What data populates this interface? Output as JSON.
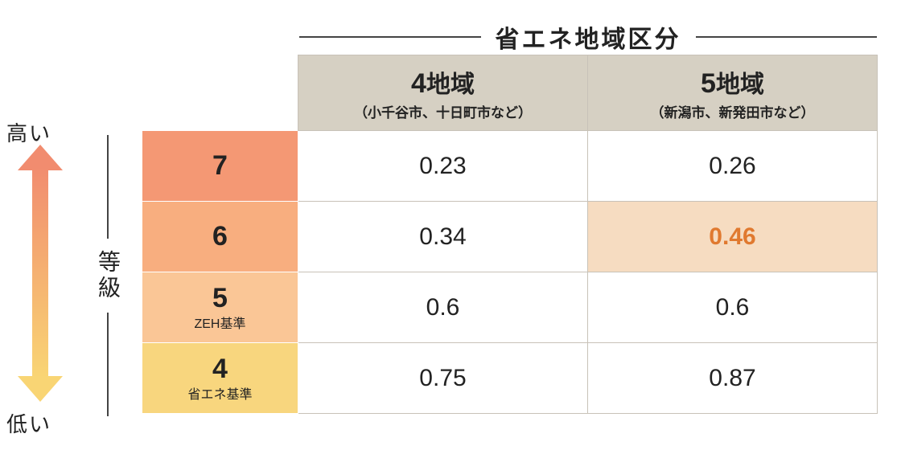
{
  "title": "省エネ地域区分",
  "axis": {
    "high_label": "高い",
    "low_label": "低い",
    "grade_label": "等級",
    "colors": {
      "top": "#f18c6f",
      "bottom": "#f9d574",
      "arrow_top": "#f18c6f",
      "arrow_bottom": "#f9d574"
    }
  },
  "columns": [
    {
      "num": "4",
      "suffix": "地域",
      "sub": "（小千谷市、十日町市など）"
    },
    {
      "num": "5",
      "suffix": "地域",
      "sub": "（新潟市、新発田市など）"
    }
  ],
  "rows": [
    {
      "grade": "7",
      "sub": "",
      "color": "#f49874",
      "cells": [
        {
          "v": "0.23"
        },
        {
          "v": "0.26"
        }
      ]
    },
    {
      "grade": "6",
      "sub": "",
      "color": "#f8ae7f",
      "cells": [
        {
          "v": "0.34"
        },
        {
          "v": "0.46",
          "bg": "#f6dcc1",
          "fg": "#e0792f",
          "bold": true
        }
      ]
    },
    {
      "grade": "5",
      "sub": "ZEH基準",
      "color": "#fac696",
      "cells": [
        {
          "v": "0.6"
        },
        {
          "v": "0.6"
        }
      ]
    },
    {
      "grade": "4",
      "sub": "省エネ基準",
      "color": "#f8d67e",
      "cells": [
        {
          "v": "0.75"
        },
        {
          "v": "0.87"
        }
      ]
    }
  ],
  "style": {
    "header_bg": "#d6d0c3",
    "border": "#c8c2b8",
    "text": "#222222",
    "cell_bg": "#ffffff"
  }
}
